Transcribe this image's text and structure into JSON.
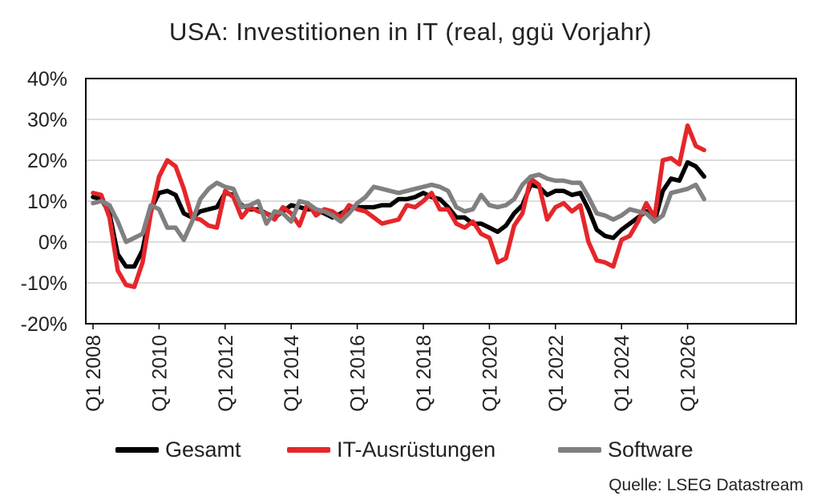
{
  "title": "USA: Investitionen in IT (real, ggü Vorjahr)",
  "source": "Quelle: LSEG Datastream",
  "chart_data": {
    "type": "line",
    "title": "USA: Investitionen in IT (real, ggü Vorjahr)",
    "xlabel": "",
    "ylabel": "",
    "ylim": [
      -20,
      40
    ],
    "yticks": [
      "-20%",
      "-10%",
      "0%",
      "10%",
      "20%",
      "30%",
      "40%"
    ],
    "ytick_values": [
      -20,
      -10,
      0,
      10,
      20,
      30,
      40
    ],
    "xticks": [
      "Q1 2008",
      "Q1 2010",
      "Q1 2012",
      "Q1 2014",
      "Q1 2016",
      "Q1 2018",
      "Q1 2020",
      "Q1 2022",
      "Q1 2024",
      "Q1 2026"
    ],
    "xtick_years": [
      2008,
      2010,
      2012,
      2014,
      2016,
      2018,
      2020,
      2022,
      2024,
      2026
    ],
    "x_start": "Q1 2008",
    "grid": "horizontal",
    "legend_position": "bottom",
    "series": [
      {
        "name": "Gesamt",
        "color": "#000000",
        "values": [
          11,
          10.5,
          7,
          -3,
          -6,
          -6,
          -2,
          8,
          12,
          12.5,
          11.5,
          7,
          6,
          7.5,
          8,
          8.5,
          12,
          11.5,
          9,
          8,
          8,
          7,
          6,
          7.5,
          9,
          8.5,
          8,
          8,
          7,
          6,
          7,
          8,
          8.5,
          8.5,
          8.5,
          9,
          9,
          10.5,
          10.5,
          11,
          12,
          11,
          10.5,
          8.5,
          6,
          6,
          4.5,
          4.5,
          3.5,
          2.5,
          4,
          7,
          9,
          14,
          13.5,
          11.5,
          12.5,
          12.5,
          11.5,
          12,
          8,
          3,
          1.5,
          1,
          3,
          4.5,
          6,
          7.5,
          5,
          12.5,
          15.5,
          15,
          19.5,
          18.5,
          16
        ]
      },
      {
        "name": "IT-Ausrüstungen",
        "color": "#e5262a",
        "values": [
          12,
          11.5,
          6,
          -7,
          -10.5,
          -11,
          -5,
          7,
          16,
          20,
          18.5,
          13,
          6,
          5.5,
          4,
          3.5,
          12.5,
          11,
          6,
          8.5,
          7.5,
          7,
          5.5,
          8.5,
          7,
          4,
          9.5,
          6.5,
          8,
          7.5,
          6,
          9,
          8,
          7.5,
          6,
          4.5,
          5,
          5.5,
          9,
          8.5,
          10,
          12,
          8,
          8,
          4.5,
          3.5,
          5,
          2,
          1,
          -5,
          -4,
          4,
          7,
          15.5,
          14,
          5.5,
          8.5,
          9.5,
          7.5,
          9,
          0,
          -4.5,
          -5,
          -6,
          0.5,
          1.5,
          5,
          9.5,
          6,
          20,
          20.5,
          19,
          28.5,
          23.5,
          22.5
        ]
      },
      {
        "name": "Software",
        "color": "#808080",
        "values": [
          9.5,
          10,
          9,
          5,
          0,
          1,
          2,
          9,
          8,
          3.5,
          3.5,
          0.5,
          5,
          10.5,
          13,
          14.5,
          13.5,
          13,
          8.5,
          9,
          10,
          4.5,
          7.5,
          7,
          5,
          10,
          9.5,
          8,
          7.5,
          6.5,
          5,
          7,
          9.5,
          11,
          13.5,
          13,
          12.5,
          12,
          12.5,
          13,
          13.5,
          14,
          13.5,
          12.5,
          8.5,
          7.5,
          8,
          11.5,
          9,
          8.5,
          9,
          10.5,
          14,
          16,
          16.5,
          15.5,
          15,
          15,
          14.5,
          14.5,
          11,
          7,
          6.5,
          5.5,
          6.5,
          8,
          7.5,
          7,
          5,
          6.5,
          12,
          12.5,
          13,
          14,
          10.5
        ]
      }
    ]
  }
}
